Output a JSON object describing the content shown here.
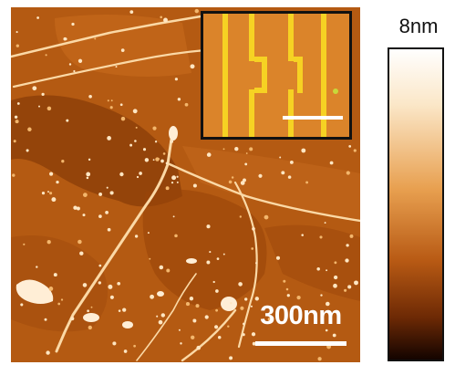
{
  "micrograph": {
    "scale_bar_label": "300nm",
    "colors": {
      "substrate": "#b45a12",
      "bright_feature": "#ffe8c8",
      "dark_region": "#7a3506"
    }
  },
  "inset": {
    "colors": {
      "background": "#e38a2e",
      "electrode": "#f6d223",
      "frame": "#111111",
      "scale_bar": "#ffffff"
    }
  },
  "colorbar": {
    "max_label": "8nm",
    "gradient": [
      "#ffffff",
      "#fbe7c8",
      "#e8a050",
      "#b85a14",
      "#6e2a05",
      "#120300"
    ]
  }
}
